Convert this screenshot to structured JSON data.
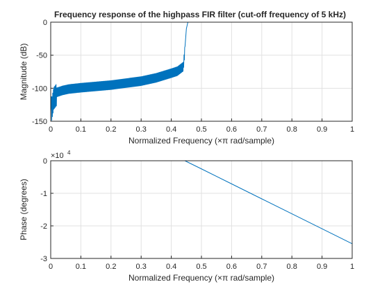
{
  "chart_data": [
    {
      "type": "line",
      "title": "Frequency response of the highpass FIR filter (cut-off frequency of 5 kHz)",
      "xlabel": "Normalized Frequency  (×π rad/sample)",
      "ylabel": "Magnitude (dB)",
      "xlim": [
        0,
        1
      ],
      "ylim": [
        -150,
        0
      ],
      "xticks": [
        "0",
        "0.1",
        "0.2",
        "0.3",
        "0.4",
        "0.5",
        "0.6",
        "0.7",
        "0.8",
        "0.9",
        "1"
      ],
      "yticks": [
        "-150",
        "-100",
        "-50",
        "0"
      ],
      "grid": true,
      "color": "#0072bd",
      "series": [
        {
          "x": [
            0,
            0.01,
            0.02,
            0.04,
            0.06,
            0.1,
            0.15,
            0.2,
            0.25,
            0.3,
            0.35,
            0.4,
            0.42,
            0.44,
            0.445,
            0.45,
            0.455,
            0.46,
            0.47,
            0.5,
            0.6,
            0.7,
            0.8,
            0.9,
            1
          ],
          "y": [
            -135,
            -110,
            -104,
            -101,
            -99,
            -97,
            -95,
            -93,
            -90,
            -87,
            -82,
            -75,
            -72,
            -65,
            -40,
            -10,
            0,
            0,
            0,
            0,
            0,
            0,
            0,
            0,
            0
          ]
        }
      ]
    },
    {
      "type": "line",
      "title": "",
      "xlabel": "Normalized Frequency  (×π rad/sample)",
      "ylabel": "Phase (degrees)",
      "exponent_label": "×10",
      "exponent_power": "4",
      "xlim": [
        0,
        1
      ],
      "ylim": [
        -3,
        0
      ],
      "xticks": [
        "0",
        "0.1",
        "0.2",
        "0.3",
        "0.4",
        "0.5",
        "0.6",
        "0.7",
        "0.8",
        "0.9",
        "1"
      ],
      "yticks": [
        "-3",
        "-2",
        "-1",
        "0"
      ],
      "grid": true,
      "color": "#0072bd",
      "series": [
        {
          "x": [
            0,
            0.1,
            0.2,
            0.3,
            0.4,
            0.445,
            0.5,
            0.6,
            0.7,
            0.8,
            0.9,
            1
          ],
          "y": [
            0,
            0,
            0,
            0,
            0,
            0,
            -0.25,
            -0.71,
            -1.17,
            -1.63,
            -2.09,
            -2.55
          ]
        }
      ]
    }
  ]
}
